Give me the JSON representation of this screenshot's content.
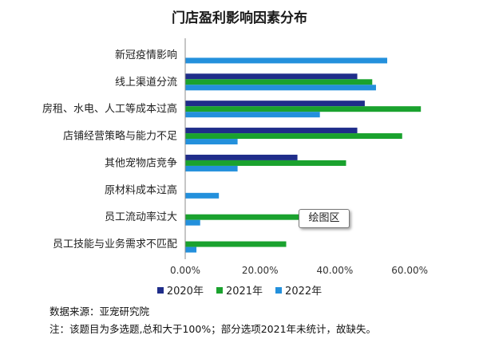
{
  "chart_data": {
    "type": "bar",
    "orientation": "horizontal",
    "title": "门店盈利影响因素分布",
    "categories": [
      "新冠疫情影响",
      "线上渠道分流",
      "房租、水电、人工等成本过高",
      "店铺经营策略与能力不足",
      "其他宠物店竞争",
      "原材料成本过高",
      "员工流动率过大",
      "员工技能与业务需求不匹配"
    ],
    "series": [
      {
        "name": "2020年",
        "color": "#1f2d8a",
        "values": [
          null,
          46.0,
          48.0,
          46.0,
          30.0,
          null,
          null,
          null
        ]
      },
      {
        "name": "2021年",
        "color": "#1aa22e",
        "values": [
          null,
          50.0,
          63.0,
          58.0,
          43.0,
          null,
          30.5,
          27.0
        ]
      },
      {
        "name": "2022年",
        "color": "#2390dc",
        "values": [
          54.0,
          51.0,
          36.0,
          14.0,
          14.0,
          9.0,
          4.0,
          3.0
        ]
      }
    ],
    "xlim": [
      0,
      70
    ],
    "xticks": [
      0,
      20,
      40,
      60
    ],
    "xtick_labels": [
      "0.00%",
      "20.00%",
      "40.00%",
      "60.00%"
    ],
    "value_unit": "%",
    "legend_position": "bottom",
    "grid": false
  },
  "source_text": "数据来源：亚宠研究院",
  "note_text": "注：该题目为多选题,总和大于100%；部分选项2021年未统计，故缺失。",
  "tooltip_text": "绘图区"
}
